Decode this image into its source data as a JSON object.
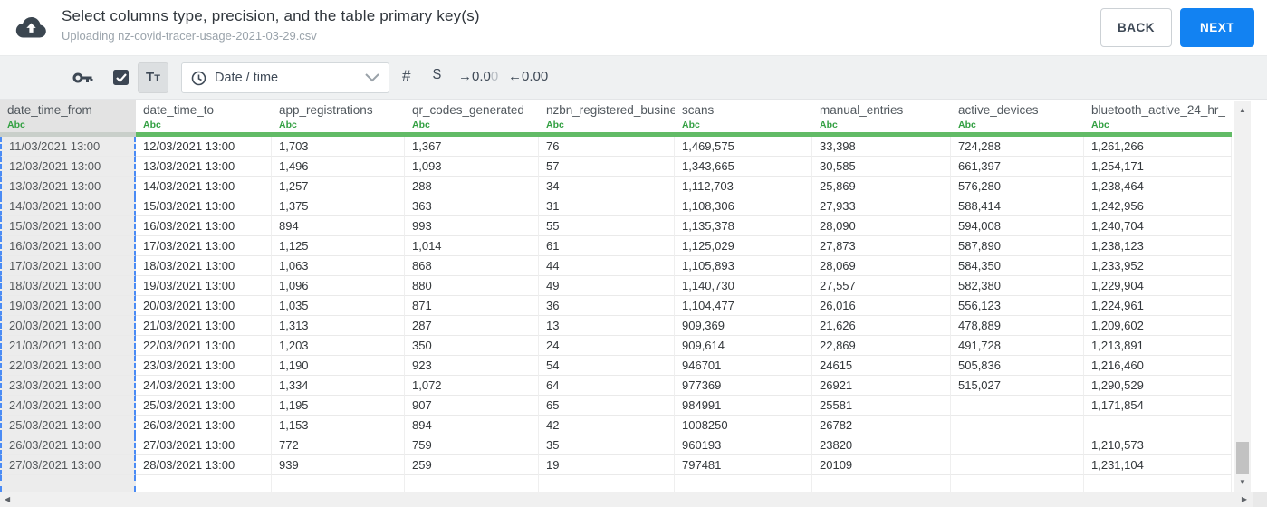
{
  "header": {
    "title": "Select columns type, precision, and the table primary key(s)",
    "subtitle": "Uploading nz-covid-tracer-usage-2021-03-29.csv",
    "back_label": "BACK",
    "next_label": "NEXT"
  },
  "toolbar": {
    "checkbox_checked": true,
    "text_type_large": "T",
    "text_type_small": "T",
    "type_dropdown_value": "Date / time",
    "number_type_label": "#",
    "currency_type_label": "$",
    "increase_decimals_dark": "→0.0",
    "increase_decimals_light": "0",
    "decrease_decimals_label": "←0.00"
  },
  "table": {
    "columns": [
      {
        "name": "date_time_from",
        "type": "Abc",
        "selected": true
      },
      {
        "name": "date_time_to",
        "type": "Abc",
        "selected": false
      },
      {
        "name": "app_registrations",
        "type": "Abc",
        "selected": false
      },
      {
        "name": "qr_codes_generated",
        "type": "Abc",
        "selected": false
      },
      {
        "name": "nzbn_registered_busine",
        "type": "Abc",
        "selected": false
      },
      {
        "name": "scans",
        "type": "Abc",
        "selected": false
      },
      {
        "name": "manual_entries",
        "type": "Abc",
        "selected": false
      },
      {
        "name": "active_devices",
        "type": "Abc",
        "selected": false
      },
      {
        "name": "bluetooth_active_24_hr_",
        "type": "Abc",
        "selected": false
      }
    ],
    "rows": [
      [
        "11/03/2021 13:00",
        "12/03/2021 13:00",
        "1,703",
        "1,367",
        "76",
        "1,469,575",
        "33,398",
        "724,288",
        "1,261,266"
      ],
      [
        "12/03/2021 13:00",
        "13/03/2021 13:00",
        "1,496",
        "1,093",
        "57",
        "1,343,665",
        "30,585",
        "661,397",
        "1,254,171"
      ],
      [
        "13/03/2021 13:00",
        "14/03/2021 13:00",
        "1,257",
        "288",
        "34",
        "1,112,703",
        "25,869",
        "576,280",
        "1,238,464"
      ],
      [
        "14/03/2021 13:00",
        "15/03/2021 13:00",
        "1,375",
        "363",
        "31",
        "1,108,306",
        "27,933",
        "588,414",
        "1,242,956"
      ],
      [
        "15/03/2021 13:00",
        "16/03/2021 13:00",
        "894",
        "993",
        "55",
        "1,135,378",
        "28,090",
        "594,008",
        "1,240,704"
      ],
      [
        "16/03/2021 13:00",
        "17/03/2021 13:00",
        "1,125",
        "1,014",
        "61",
        "1,125,029",
        "27,873",
        "587,890",
        "1,238,123"
      ],
      [
        "17/03/2021 13:00",
        "18/03/2021 13:00",
        "1,063",
        "868",
        "44",
        "1,105,893",
        "28,069",
        "584,350",
        "1,233,952"
      ],
      [
        "18/03/2021 13:00",
        "19/03/2021 13:00",
        "1,096",
        "880",
        "49",
        "1,140,730",
        "27,557",
        "582,380",
        "1,229,904"
      ],
      [
        "19/03/2021 13:00",
        "20/03/2021 13:00",
        "1,035",
        "871",
        "36",
        "1,104,477",
        "26,016",
        "556,123",
        "1,224,961"
      ],
      [
        "20/03/2021 13:00",
        "21/03/2021 13:00",
        "1,313",
        "287",
        "13",
        "909,369",
        "21,626",
        "478,889",
        "1,209,602"
      ],
      [
        "21/03/2021 13:00",
        "22/03/2021 13:00",
        "1,203",
        "350",
        "24",
        "909,614",
        "22,869",
        "491,728",
        "1,213,891"
      ],
      [
        "22/03/2021 13:00",
        "23/03/2021 13:00",
        "1,190",
        "923",
        "54",
        "946701",
        "24615",
        "505,836",
        "1,216,460"
      ],
      [
        "23/03/2021 13:00",
        "24/03/2021 13:00",
        "1,334",
        "1,072",
        "64",
        "977369",
        "26921",
        "515,027",
        "1,290,529"
      ],
      [
        "24/03/2021 13:00",
        "25/03/2021 13:00",
        "1,195",
        "907",
        "65",
        "984991",
        "25581",
        "",
        "1,171,854"
      ],
      [
        "25/03/2021 13:00",
        "26/03/2021 13:00",
        "1,153",
        "894",
        "42",
        "1008250",
        "26782",
        "",
        ""
      ],
      [
        "26/03/2021 13:00",
        "27/03/2021 13:00",
        "772",
        "759",
        "35",
        "960193",
        "23820",
        "",
        "1,210,573"
      ],
      [
        "27/03/2021 13:00",
        "28/03/2021 13:00",
        "939",
        "259",
        "19",
        "797481",
        "20109",
        "",
        "1,231,104"
      ]
    ]
  },
  "icons": {
    "up_glyph": "▲",
    "down_glyph": "▼",
    "left_glyph": "◀",
    "right_glyph": "▶"
  },
  "colors": {
    "accent_blue": "#1282f2",
    "type_green": "#33a042",
    "selection_blue": "#4a8bf5",
    "toolbar_gray": "#eff1f2",
    "dark_slate": "#3e4956"
  }
}
